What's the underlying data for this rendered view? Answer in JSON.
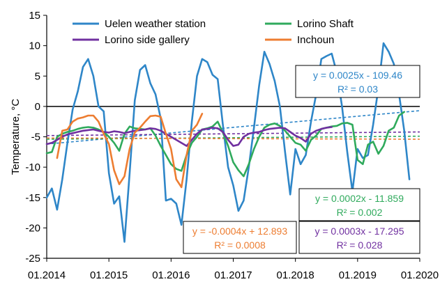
{
  "chart_data": {
    "type": "line",
    "title": "",
    "xlabel": "",
    "ylabel": "Temperature, °C",
    "ylim": [
      -25,
      15
    ],
    "yticks": [
      "15",
      "10",
      "5",
      "0",
      "-5",
      "-10",
      "-15",
      "-20",
      "-25"
    ],
    "xlim": [
      "2014-01",
      "2020-01"
    ],
    "xticks": [
      "01.2014",
      "01.2015",
      "01.2016",
      "01.2017",
      "01.2018",
      "01.2019",
      "01.2020"
    ],
    "zero_line": true,
    "grid": false,
    "legend_position": "top",
    "series": [
      {
        "name": "Uelen weather station",
        "color": "#2E86C8",
        "x": [
          "2014-01",
          "2014-02",
          "2014-03",
          "2014-04",
          "2014-05",
          "2014-06",
          "2014-07",
          "2014-08",
          "2014-09",
          "2014-10",
          "2014-11",
          "2014-12",
          "2015-01",
          "2015-02",
          "2015-03",
          "2015-04",
          "2015-05",
          "2015-06",
          "2015-07",
          "2015-08",
          "2015-09",
          "2015-10",
          "2015-11",
          "2015-12",
          "2016-01",
          "2016-02",
          "2016-03",
          "2016-04",
          "2016-05",
          "2016-06",
          "2016-07",
          "2016-08",
          "2016-09",
          "2016-10",
          "2016-11",
          "2016-12",
          "2017-01",
          "2017-02",
          "2017-03",
          "2017-04",
          "2017-05",
          "2017-06",
          "2017-07",
          "2017-08",
          "2017-09",
          "2017-10",
          "2017-11",
          "2017-12",
          "2018-01",
          "2018-02",
          "2018-03",
          "2018-04",
          "2018-05",
          "2018-06",
          "2018-07",
          "2018-08",
          "2018-09",
          "2018-10",
          "2018-11",
          "2018-12",
          "2019-01",
          "2019-02",
          "2019-03",
          "2019-04",
          "2019-05",
          "2019-06",
          "2019-07",
          "2019-08",
          "2019-09",
          "2019-10",
          "2019-11"
        ],
        "values": [
          -15,
          -13.5,
          -17,
          -12,
          -6,
          -0.5,
          2.5,
          6.5,
          7.8,
          5,
          0,
          -0.8,
          -11,
          -16,
          -14.8,
          -22.3,
          -11,
          1,
          6,
          6.8,
          3.8,
          2,
          -2,
          -15.5,
          -15.2,
          -16,
          -19.5,
          -12,
          -2.5,
          5,
          7.8,
          7.3,
          5.2,
          4.5,
          -3,
          -10,
          -13,
          -17.2,
          -15.5,
          -10,
          -3.5,
          3.5,
          9,
          7,
          4.2,
          0,
          -7.5,
          -14.5,
          -7,
          -9.5,
          -8,
          -2.5,
          2,
          7.8,
          8.3,
          8.7,
          5.5,
          0,
          -7.5,
          -14,
          -7,
          -8.5,
          -8,
          -3,
          3,
          10.4,
          9,
          7,
          2,
          -4,
          -12
        ]
      },
      {
        "name": "Lorino Shaft",
        "color": "#2FAA5C",
        "x": [
          "2014-01",
          "2014-02",
          "2014-03",
          "2014-04",
          "2014-05",
          "2014-06",
          "2014-07",
          "2014-08",
          "2014-09",
          "2014-10",
          "2014-11",
          "2014-12",
          "2015-01",
          "2015-02",
          "2015-03",
          "2015-04",
          "2015-05",
          "2015-06",
          "2015-07",
          "2015-08",
          "2015-09",
          "2015-10",
          "2015-11",
          "2015-12",
          "2016-01",
          "2016-02",
          "2016-03",
          "2016-04",
          "2016-05",
          "2016-06",
          "2016-07",
          "2016-08",
          "2016-09",
          "2016-10",
          "2016-11",
          "2016-12",
          "2017-01",
          "2017-02",
          "2017-03",
          "2017-04",
          "2017-05",
          "2017-06",
          "2017-07",
          "2017-08",
          "2017-09",
          "2017-10",
          "2017-11",
          "2017-12",
          "2018-01",
          "2018-02",
          "2018-03",
          "2018-04",
          "2018-05",
          "2018-06",
          "2018-07",
          "2018-08",
          "2018-09",
          "2018-10",
          "2018-11",
          "2018-12",
          "2019-01",
          "2019-02",
          "2019-03",
          "2019-04",
          "2019-05",
          "2019-06",
          "2019-07",
          "2019-08",
          "2019-09",
          "2019-10"
        ],
        "values": [
          -7.7,
          -7.5,
          -5,
          -4.5,
          -4.2,
          -4,
          -3.7,
          -3.5,
          -3.4,
          -3.5,
          -3.8,
          -4.2,
          -5,
          -6,
          -7.3,
          -4.5,
          -3.3,
          -3.6,
          -3.7,
          -3.8,
          -3.6,
          -4.8,
          -6.5,
          -8,
          -9.5,
          -10.3,
          -10.6,
          -8,
          -6,
          -5,
          -3.8,
          -3.6,
          -3.3,
          -2.5,
          -4.3,
          -6.5,
          -9.2,
          -10.5,
          -11.5,
          -9.5,
          -7,
          -5,
          -3.5,
          -3,
          -2.8,
          -3.2,
          -4,
          -5,
          -6,
          -6.3,
          -7.3,
          -5.5,
          -4.8,
          -3.7,
          -3.5,
          -3.3,
          -3.2,
          -2.8,
          -2.7,
          -3,
          -8.8,
          -9.5,
          -6.3,
          -5.8,
          -7.8,
          -6.5,
          -4,
          -3.5,
          -1.5,
          -0.9
        ]
      },
      {
        "name": "Lorino side gallery",
        "color": "#7030A0",
        "x": [
          "2014-01",
          "2014-02",
          "2014-03",
          "2014-04",
          "2014-05",
          "2014-06",
          "2014-07",
          "2014-08",
          "2014-09",
          "2014-10",
          "2014-11",
          "2014-12",
          "2015-01",
          "2015-02",
          "2015-03",
          "2015-04",
          "2015-05",
          "2015-06",
          "2015-07",
          "2015-08",
          "2015-09",
          "2015-10",
          "2015-11",
          "2015-12",
          "2016-01",
          "2016-02",
          "2016-03",
          "2016-04",
          "2016-05",
          "2016-06",
          "2016-07",
          "2016-08",
          "2016-09",
          "2016-10",
          "2016-11",
          "2016-12",
          "2017-01",
          "2017-02",
          "2017-03",
          "2017-04",
          "2017-05",
          "2017-06",
          "2017-07",
          "2017-08",
          "2017-09",
          "2017-10",
          "2017-11",
          "2017-12",
          "2018-01",
          "2018-02",
          "2018-03",
          "2018-04",
          "2018-05",
          "2018-06",
          "2018-07",
          "2018-08"
        ],
        "values": [
          -6.2,
          -6,
          -5.5,
          -5,
          -4.6,
          -4.4,
          -4.2,
          -4,
          -3.9,
          -3.8,
          -4,
          -4.2,
          -4.3,
          -4.1,
          -4.2,
          -4.4,
          -4.2,
          -4,
          -3.9,
          -3.8,
          -3.6,
          -3.7,
          -4,
          -4.5,
          -5,
          -5.5,
          -6,
          -6.5,
          -5.5,
          -4.5,
          -3.8,
          -3.7,
          -3.5,
          -3.6,
          -4.2,
          -5.5,
          -6.5,
          -6.3,
          -5,
          -4.5,
          -4.3,
          -4.2,
          -3.9,
          -3.7,
          -3.6,
          -3.5,
          -3.6,
          -4.2,
          -4.8,
          -5.2,
          -5.8,
          -4.5,
          -4,
          -3.7,
          -3.5,
          -3.4
        ]
      },
      {
        "name": "Inchoun",
        "color": "#ED7D31",
        "x": [
          "2014-03",
          "2014-04",
          "2014-05",
          "2014-06",
          "2014-07",
          "2014-08",
          "2014-09",
          "2014-10",
          "2014-11",
          "2014-12",
          "2015-01",
          "2015-02",
          "2015-03",
          "2015-04",
          "2015-05",
          "2015-06",
          "2015-07",
          "2015-08",
          "2015-09",
          "2015-10",
          "2015-11",
          "2015-12",
          "2016-01",
          "2016-02",
          "2016-03",
          "2016-04",
          "2016-05",
          "2016-06",
          "2016-07"
        ],
        "values": [
          -8.5,
          -4,
          -3.8,
          -2.5,
          -2,
          -1.8,
          -1.5,
          -1.5,
          -2.5,
          -4.5,
          -6.2,
          -10.5,
          -12.8,
          -11.5,
          -7,
          -4.3,
          -3.5,
          -2.5,
          -1.6,
          -1.5,
          -1.7,
          -4.5,
          -7,
          -12,
          -13.3,
          -8,
          -4,
          -3,
          -1.2
        ]
      }
    ],
    "trendlines": [
      {
        "series": "Uelen weather station",
        "color": "#2E86C8",
        "equation": "y = 0.0025x - 109.46",
        "r2": "R² = 0.03",
        "y_start": -6.2,
        "y_end": -0.7
      },
      {
        "series": "Lorino Shaft",
        "color": "#2FAA5C",
        "equation": "y = 0.0002x - 11.859",
        "r2": "R² = 0.002",
        "y_start": -5.4,
        "y_end": -4.9
      },
      {
        "series": "Lorino side gallery",
        "color": "#7030A0",
        "equation": "y = 0.0003x - 17.295",
        "r2": "R² = 0.028",
        "y_start": -4.8,
        "y_end": -4.2
      },
      {
        "series": "Inchoun",
        "color": "#ED7D31",
        "equation": "y = -0.0004x + 12.893",
        "r2": "R² = 0.0008",
        "y_start": -5.2,
        "y_end": -5.4
      }
    ]
  }
}
